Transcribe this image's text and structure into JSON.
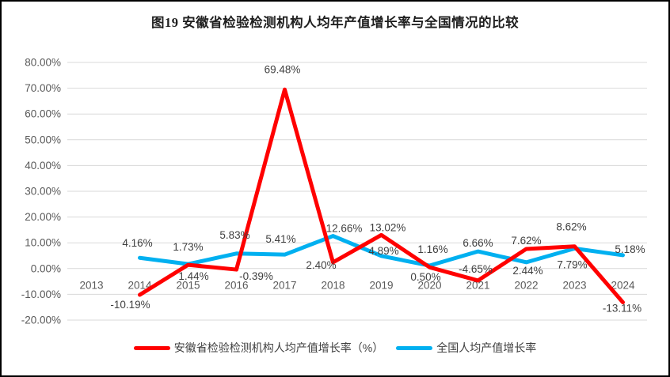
{
  "colors": {
    "background": "#FFFFFF",
    "frame_border": "#000000",
    "grid": "#D9D9D9",
    "axis_text": "#595959",
    "label_text": "#404040",
    "title_text": "#1F1F1F"
  },
  "chart_data": {
    "type": "line",
    "title": "图19 安徽省检验检测机构人均年产值增长率与全国情况的比较",
    "categories": [
      "2013",
      "2014",
      "2015",
      "2016",
      "2017",
      "2018",
      "2019",
      "2020",
      "2021",
      "2022",
      "2023",
      "2024"
    ],
    "ylim": [
      -20,
      80
    ],
    "ytick_step": 10,
    "ytick_labels": [
      "80.00%",
      "70.00%",
      "60.00%",
      "50.00%",
      "40.00%",
      "30.00%",
      "20.00%",
      "10.00%",
      "0.00%",
      "-10.00%",
      "-20.00%"
    ],
    "grid": true,
    "legend_position": "bottom",
    "series": [
      {
        "id": "anhui",
        "name": "安徽省检验检测机构人均产值增长率（%）",
        "color": "#FF0000",
        "values": [
          null,
          -10.19,
          1.44,
          -0.39,
          69.48,
          2.4,
          13.02,
          0.5,
          -4.65,
          7.62,
          8.62,
          -13.11
        ],
        "labels": [
          null,
          "-10.19%",
          "1.44%",
          "-0.39%",
          "69.48%",
          "2.40%",
          "13.02%",
          "0.50%",
          "-4.65%",
          "7.62%",
          "8.62%",
          "-13.11%"
        ],
        "label_offsets": [
          null,
          [
            -12,
            17
          ],
          [
            7,
            19
          ],
          [
            25,
            13
          ],
          [
            -3,
            -21
          ],
          [
            -15,
            8
          ],
          [
            8,
            -5
          ],
          [
            -5,
            17
          ],
          [
            -3,
            -10
          ],
          [
            0,
            -6
          ],
          [
            -4,
            -20
          ],
          [
            -1,
            12
          ]
        ]
      },
      {
        "id": "national",
        "name": "全国人均产值增长率",
        "color": "#00B0F0",
        "values": [
          null,
          4.16,
          1.73,
          5.83,
          5.41,
          12.66,
          4.89,
          1.16,
          6.66,
          2.44,
          7.79,
          5.18
        ],
        "labels": [
          null,
          "4.16%",
          "1.73%",
          "5.83%",
          "5.41%",
          "12.66%",
          "4.89%",
          "1.16%",
          "6.66%",
          "2.44%",
          "7.79%",
          "5.18%"
        ],
        "label_offsets": [
          null,
          [
            -3,
            -14
          ],
          [
            0,
            -17
          ],
          [
            -2,
            -19
          ],
          [
            -5,
            -15
          ],
          [
            14,
            -5
          ],
          [
            3,
            -2
          ],
          [
            4,
            -16
          ],
          [
            0,
            -6
          ],
          [
            2,
            15
          ],
          [
            -3,
            25
          ],
          [
            9,
            -3
          ]
        ]
      }
    ]
  }
}
